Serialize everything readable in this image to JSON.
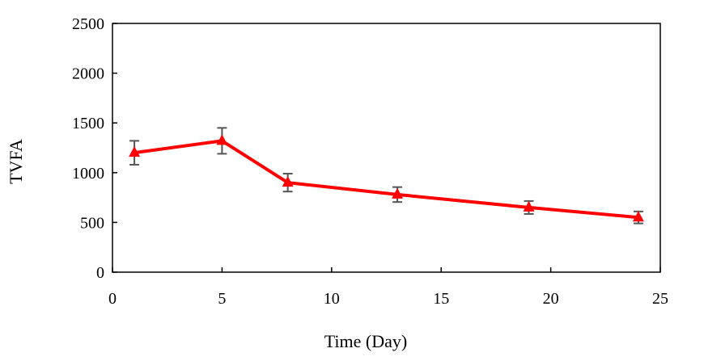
{
  "chart_data": {
    "type": "line",
    "title": "",
    "xlabel": "Time (Day)",
    "ylabel": "TVFA",
    "xlim": [
      0,
      25
    ],
    "ylim": [
      0,
      2500
    ],
    "xticks": [
      0,
      5,
      10,
      15,
      20,
      25
    ],
    "yticks": [
      0,
      500,
      1000,
      1500,
      2000,
      2500
    ],
    "grid": false,
    "legend": "none",
    "series": [
      {
        "name": "TVFA",
        "color": "#ff0000",
        "marker": "triangle",
        "x": [
          1,
          5,
          8,
          13,
          19,
          24
        ],
        "y": [
          1200,
          1320,
          900,
          780,
          650,
          550
        ],
        "error": [
          120,
          130,
          90,
          75,
          65,
          60
        ]
      }
    ],
    "error_bar_color": "#555555"
  }
}
